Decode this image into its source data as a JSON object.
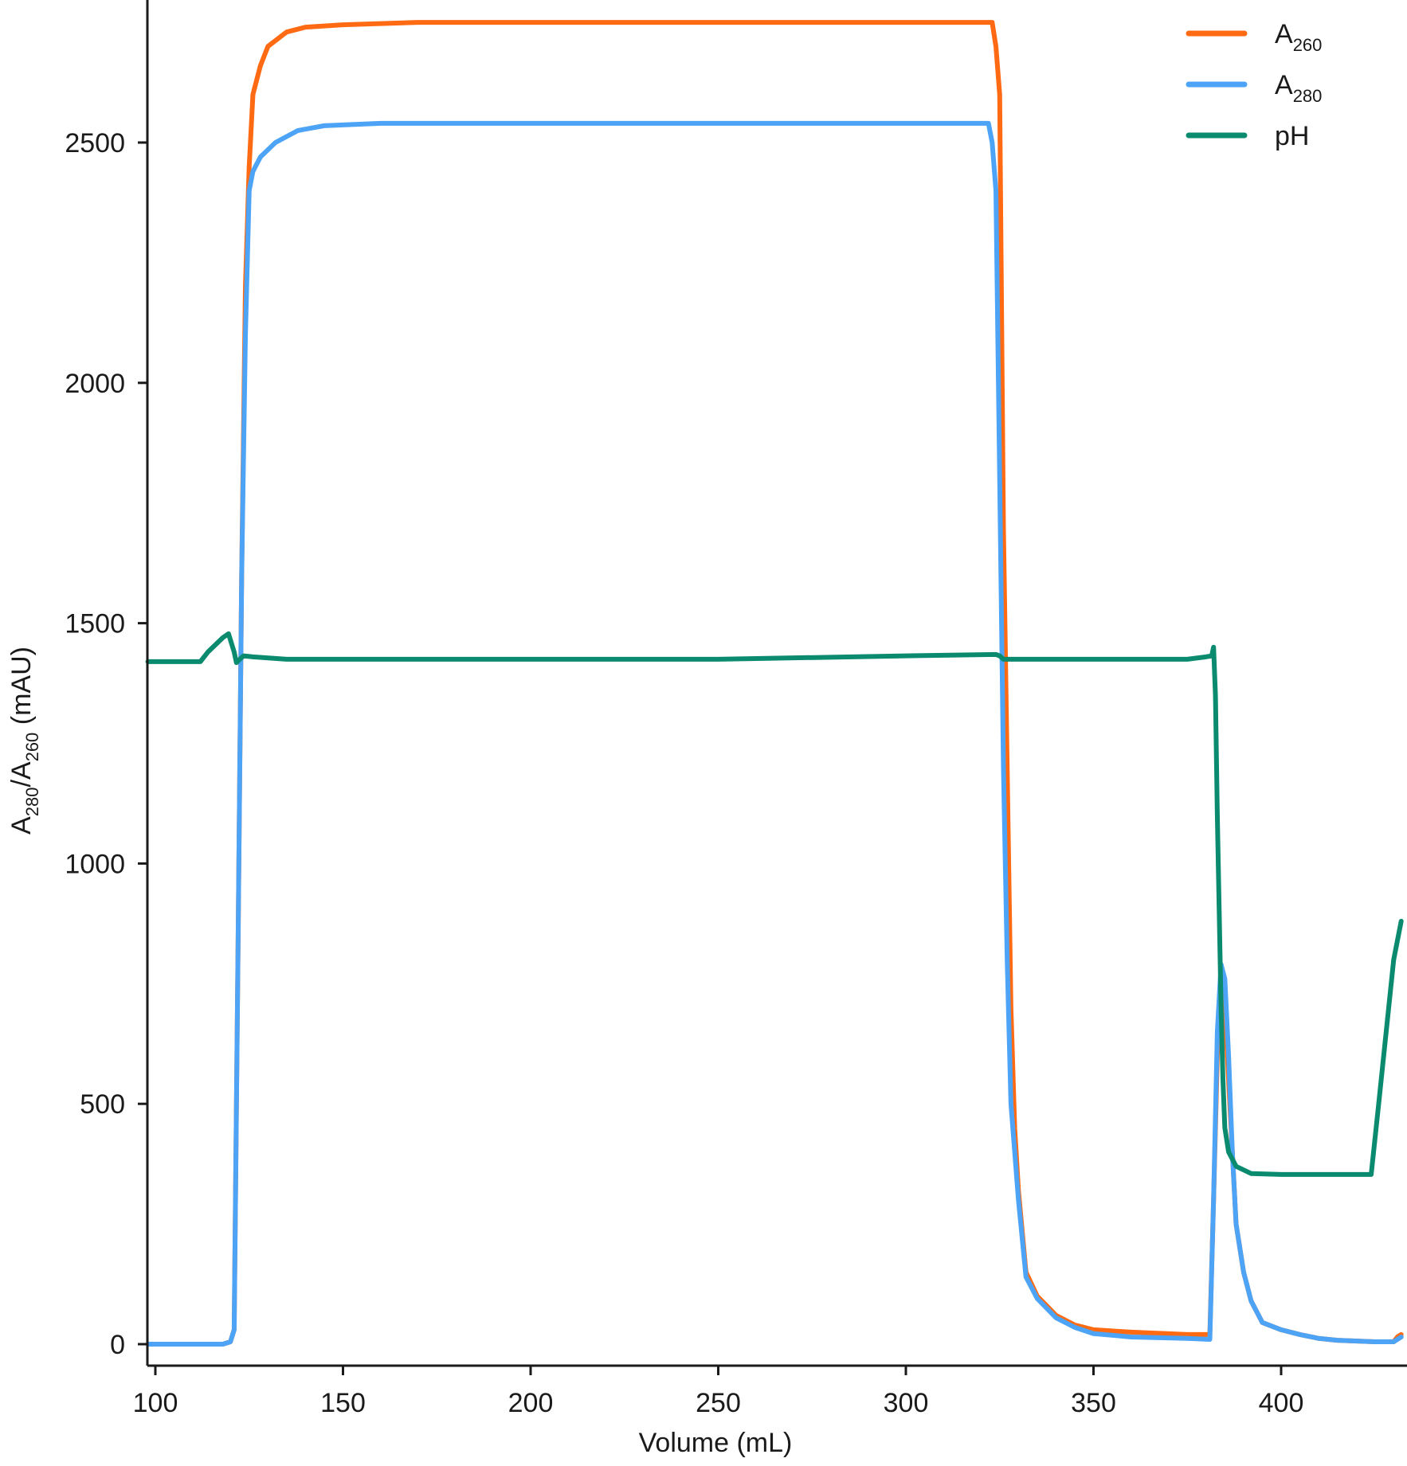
{
  "chart_data": {
    "type": "line",
    "title": "",
    "xlabel": "Volume (mL)",
    "ylabel": {
      "base": "A",
      "sub1": "280",
      "mid": "/A",
      "sub2": "260",
      "suffix": " (mAU)"
    },
    "xlim": [
      98,
      433
    ],
    "ylim": [
      -40,
      2800
    ],
    "x_ticks": [
      100,
      150,
      200,
      250,
      300,
      350,
      400
    ],
    "y_ticks": [
      0,
      500,
      1000,
      1500,
      2000,
      2500
    ],
    "grid": false,
    "legend_position": "top-right",
    "series": [
      {
        "name_main": "A",
        "name_sub": "260",
        "color": "#ff6a13",
        "points": [
          [
            98,
            0
          ],
          [
            118,
            0
          ],
          [
            120,
            5
          ],
          [
            121,
            30
          ],
          [
            122,
            800
          ],
          [
            123,
            1600
          ],
          [
            124,
            2200
          ],
          [
            125,
            2450
          ],
          [
            126,
            2600
          ],
          [
            128,
            2660
          ],
          [
            130,
            2700
          ],
          [
            135,
            2730
          ],
          [
            140,
            2740
          ],
          [
            150,
            2745
          ],
          [
            170,
            2750
          ],
          [
            323,
            2750
          ],
          [
            324,
            2700
          ],
          [
            325,
            2600
          ],
          [
            326,
            1700
          ],
          [
            327,
            1200
          ],
          [
            328,
            700
          ],
          [
            329,
            450
          ],
          [
            330,
            320
          ],
          [
            332,
            150
          ],
          [
            335,
            100
          ],
          [
            340,
            60
          ],
          [
            345,
            40
          ],
          [
            350,
            30
          ],
          [
            360,
            25
          ],
          [
            375,
            20
          ],
          [
            381,
            20
          ],
          [
            382,
            300
          ],
          [
            383,
            600
          ],
          [
            384,
            760
          ],
          [
            385,
            700
          ],
          [
            386,
            550
          ],
          [
            387,
            400
          ],
          [
            388,
            250
          ],
          [
            390,
            150
          ],
          [
            392,
            90
          ],
          [
            395,
            45
          ],
          [
            400,
            30
          ],
          [
            405,
            20
          ],
          [
            410,
            12
          ],
          [
            415,
            8
          ],
          [
            425,
            5
          ],
          [
            430,
            5
          ],
          [
            431,
            15
          ],
          [
            432,
            20
          ]
        ]
      },
      {
        "name_main": "A",
        "name_sub": "280",
        "color": "#4da3f5",
        "points": [
          [
            98,
            0
          ],
          [
            118,
            0
          ],
          [
            120,
            5
          ],
          [
            121,
            30
          ],
          [
            122,
            800
          ],
          [
            123,
            1600
          ],
          [
            124,
            2100
          ],
          [
            125,
            2400
          ],
          [
            126,
            2440
          ],
          [
            128,
            2470
          ],
          [
            132,
            2500
          ],
          [
            138,
            2525
          ],
          [
            145,
            2535
          ],
          [
            160,
            2540
          ],
          [
            200,
            2540
          ],
          [
            322,
            2540
          ],
          [
            323,
            2500
          ],
          [
            324,
            2400
          ],
          [
            325,
            1800
          ],
          [
            326,
            1200
          ],
          [
            327,
            800
          ],
          [
            328,
            500
          ],
          [
            330,
            300
          ],
          [
            332,
            140
          ],
          [
            335,
            95
          ],
          [
            340,
            55
          ],
          [
            345,
            35
          ],
          [
            350,
            22
          ],
          [
            360,
            15
          ],
          [
            375,
            12
          ],
          [
            381,
            10
          ],
          [
            382,
            300
          ],
          [
            383,
            650
          ],
          [
            384,
            790
          ],
          [
            385,
            760
          ],
          [
            386,
            600
          ],
          [
            387,
            400
          ],
          [
            388,
            250
          ],
          [
            390,
            150
          ],
          [
            392,
            90
          ],
          [
            395,
            45
          ],
          [
            400,
            30
          ],
          [
            405,
            20
          ],
          [
            410,
            12
          ],
          [
            415,
            8
          ],
          [
            425,
            5
          ],
          [
            430,
            5
          ],
          [
            431,
            10
          ],
          [
            432,
            15
          ]
        ]
      },
      {
        "name_main": "pH",
        "name_sub": "",
        "color": "#0a8b6f",
        "points": [
          [
            98,
            1420
          ],
          [
            112,
            1420
          ],
          [
            114,
            1440
          ],
          [
            118,
            1470
          ],
          [
            119.5,
            1478
          ],
          [
            121,
            1440
          ],
          [
            121.6,
            1418
          ],
          [
            122.5,
            1425
          ],
          [
            123.5,
            1432
          ],
          [
            126,
            1430
          ],
          [
            135,
            1425
          ],
          [
            150,
            1425
          ],
          [
            200,
            1425
          ],
          [
            250,
            1425
          ],
          [
            300,
            1432
          ],
          [
            324,
            1435
          ],
          [
            325,
            1432
          ],
          [
            326,
            1425
          ],
          [
            350,
            1425
          ],
          [
            375,
            1425
          ],
          [
            380,
            1430
          ],
          [
            381.5,
            1432
          ],
          [
            382,
            1450
          ],
          [
            382.5,
            1350
          ],
          [
            383,
            1100
          ],
          [
            383.5,
            900
          ],
          [
            384,
            700
          ],
          [
            384.5,
            550
          ],
          [
            385,
            450
          ],
          [
            386,
            400
          ],
          [
            388,
            370
          ],
          [
            392,
            355
          ],
          [
            400,
            353
          ],
          [
            420,
            353
          ],
          [
            424,
            353
          ],
          [
            426,
            500
          ],
          [
            428,
            650
          ],
          [
            430,
            800
          ],
          [
            432,
            880
          ]
        ]
      }
    ]
  }
}
